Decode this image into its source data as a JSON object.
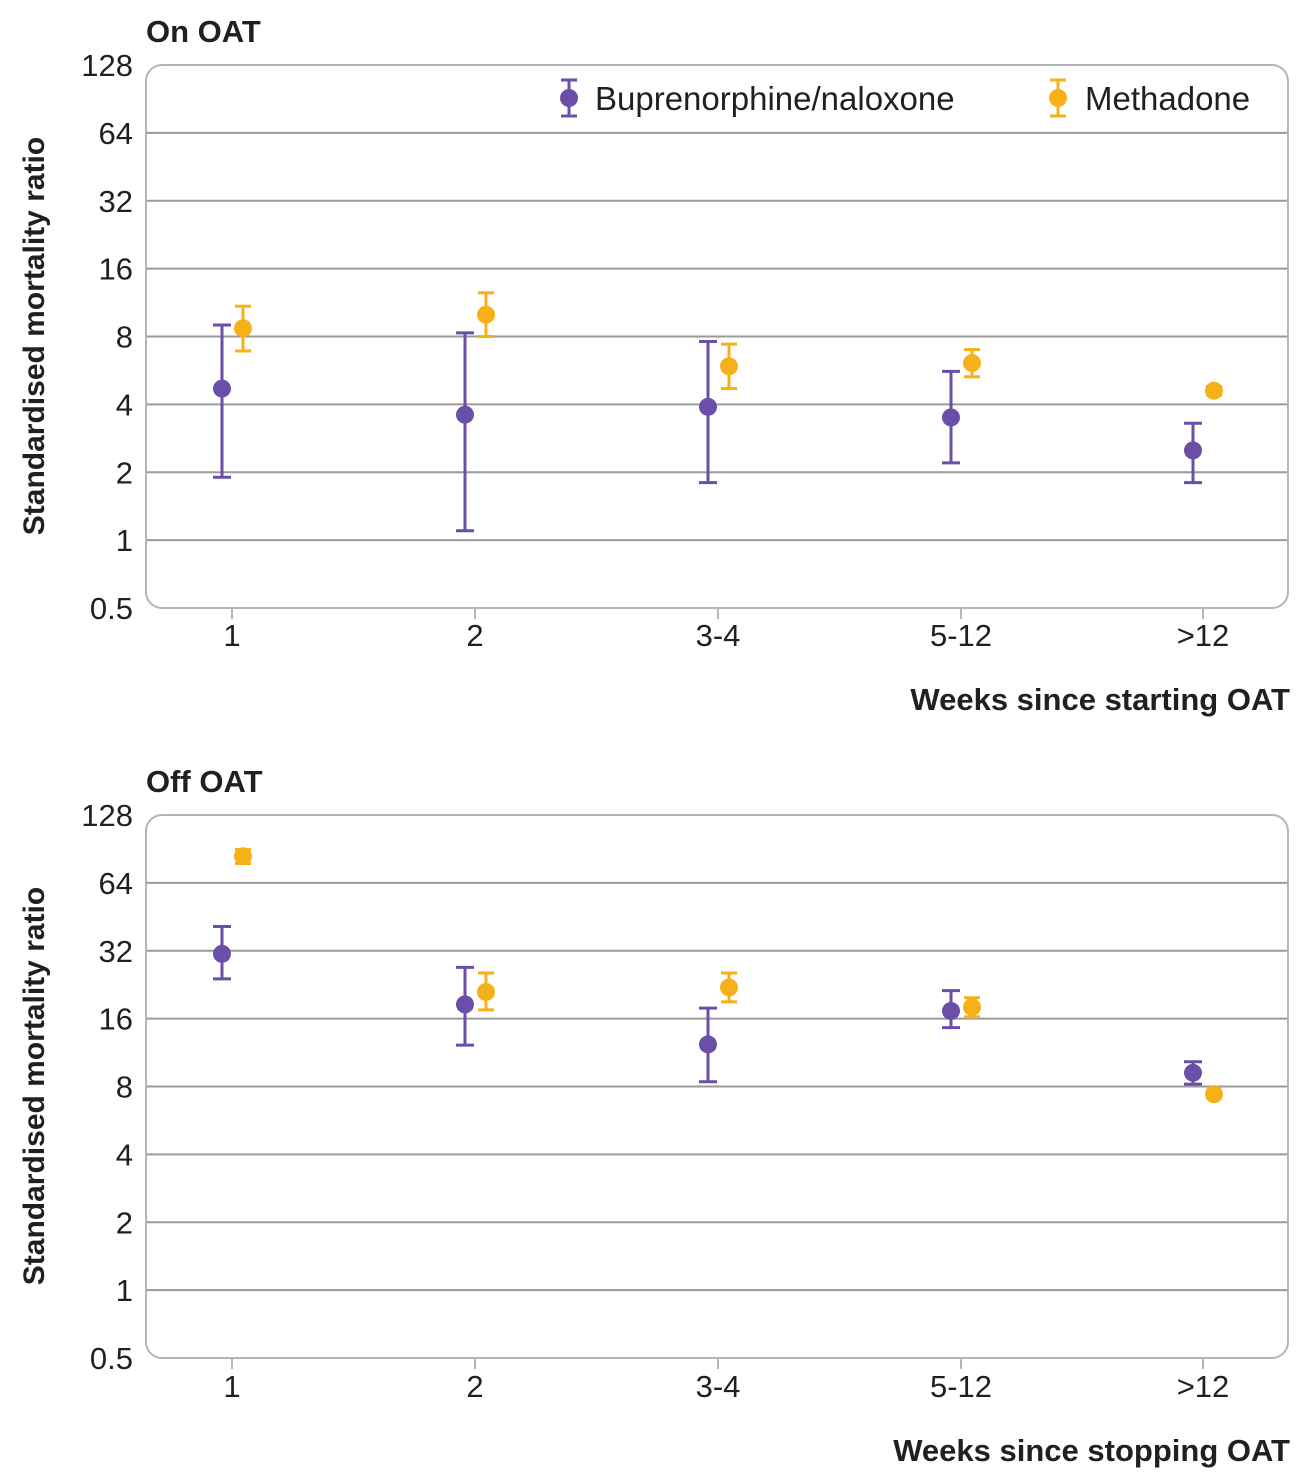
{
  "colors": {
    "buprenorphine": "#6a4fa8",
    "methadone": "#f6b119",
    "grid": "#9a9a9a",
    "frame": "#b5b5b5",
    "text": "#231f20"
  },
  "chart_data": [
    {
      "type": "scatter",
      "title": "On OAT",
      "xlabel": "Weeks since starting OAT",
      "ylabel": "Standardised mortality ratio",
      "y_scale": "log2",
      "ylim": [
        0.5,
        128
      ],
      "y_ticks": [
        "0.5",
        "1",
        "2",
        "4",
        "8",
        "16",
        "32",
        "64",
        "128"
      ],
      "categories": [
        "1",
        "2",
        "3-4",
        "5-12",
        ">12"
      ],
      "grid": "horizontal",
      "legend_position": "top-right",
      "series": [
        {
          "name": "Buprenorphine/naloxone",
          "color": "#6a4fa8",
          "values": [
            4.7,
            3.6,
            3.9,
            3.5,
            2.5
          ],
          "lower": [
            1.9,
            1.1,
            1.8,
            2.2,
            1.8
          ],
          "upper": [
            9.0,
            8.3,
            7.6,
            5.6,
            3.3
          ]
        },
        {
          "name": "Methadone",
          "color": "#f6b119",
          "values": [
            8.7,
            10.0,
            5.9,
            6.1,
            4.6
          ],
          "lower": [
            6.9,
            8.0,
            4.7,
            5.3,
            4.4
          ],
          "upper": [
            10.9,
            12.5,
            7.4,
            7.0,
            4.8
          ]
        }
      ]
    },
    {
      "type": "scatter",
      "title": "Off OAT",
      "xlabel": "Weeks since stopping OAT",
      "ylabel": "Standardised mortality ratio",
      "y_scale": "log2",
      "ylim": [
        0.5,
        128
      ],
      "y_ticks": [
        "0.5",
        "1",
        "2",
        "4",
        "8",
        "16",
        "32",
        "64",
        "128"
      ],
      "categories": [
        "1",
        "2",
        "3-4",
        "5-12",
        ">12"
      ],
      "grid": "horizontal",
      "legend_position": "none",
      "series": [
        {
          "name": "Buprenorphine/naloxone",
          "color": "#6a4fa8",
          "values": [
            31,
            18.5,
            12.3,
            17.3,
            9.2
          ],
          "lower": [
            24,
            12.2,
            8.4,
            14.6,
            8.2
          ],
          "upper": [
            41,
            27,
            17.8,
            21.3,
            10.3
          ]
        },
        {
          "name": "Methadone",
          "color": "#f6b119",
          "values": [
            84,
            21,
            22,
            18,
            7.4
          ],
          "lower": [
            78,
            17.5,
            19,
            16.3,
            7.1
          ],
          "upper": [
            90,
            25.5,
            25.5,
            19.8,
            7.7
          ]
        }
      ]
    }
  ]
}
